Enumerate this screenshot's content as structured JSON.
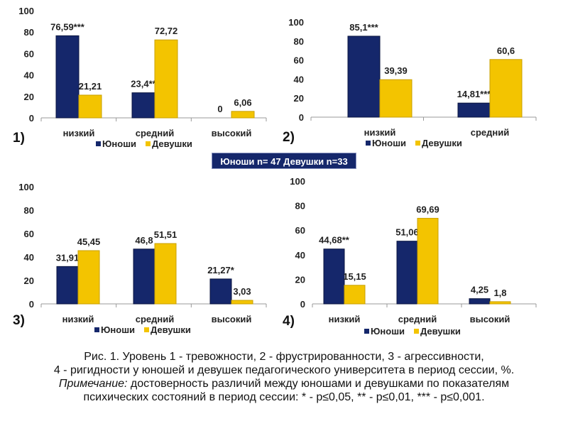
{
  "colors": {
    "Юноши": "#15276b",
    "Девушки": "#f3c400"
  },
  "sample_box": "Юноши n= 47 Девушки n=33",
  "caption": {
    "line1": "Рис. 1. Уровень 1 - тревожности, 2 -  фрустрированности, 3 - агрессивности,",
    "line2": "4 - ригидности у юношей и девушек педагогического университета в период сессии, %.",
    "note_label": "Примечание:",
    "line3": "  достоверность различий между юношами и девушками по показателям",
    "line4": "психических состояний в период сессии: * - p≤0,05, ** - p≤0,01, *** - p≤0,001."
  },
  "chart_data": [
    {
      "type": "bar",
      "number": "1)",
      "categories": [
        "низкий",
        "средний",
        "высокий"
      ],
      "ylim": [
        0,
        100
      ],
      "yticks": [
        0,
        20,
        40,
        60,
        80,
        100
      ],
      "legend": "bottom",
      "series": [
        {
          "name": "Юноши",
          "values": [
            76.59,
            23.4,
            0
          ],
          "labels": [
            "76,59***",
            "23,4**",
            "0"
          ]
        },
        {
          "name": "Девушки",
          "values": [
            21.21,
            72.72,
            6.06
          ],
          "labels": [
            "21,21",
            "72,72",
            "6,06"
          ]
        }
      ]
    },
    {
      "type": "bar",
      "number": "2)",
      "categories": [
        "низкий",
        "средний"
      ],
      "ylim": [
        0,
        100
      ],
      "yticks": [
        0,
        20,
        40,
        60,
        80,
        100
      ],
      "legend": "bottom",
      "series": [
        {
          "name": "Юноши",
          "values": [
            85.1,
            14.81
          ],
          "labels": [
            "85,1***",
            "14,81***"
          ]
        },
        {
          "name": "Девушки",
          "values": [
            39.39,
            60.6
          ],
          "labels": [
            "39,39",
            "60,6"
          ]
        }
      ]
    },
    {
      "type": "bar",
      "number": "3)",
      "categories": [
        "низкий",
        "средний",
        "высокий"
      ],
      "ylim": [
        0,
        100
      ],
      "yticks": [
        0,
        20,
        40,
        60,
        80,
        100
      ],
      "legend": "bottom",
      "series": [
        {
          "name": "Юноши",
          "values": [
            31.91,
            46.8,
            21.27
          ],
          "labels": [
            "31,91",
            "46,8",
            "21,27*"
          ]
        },
        {
          "name": "Девушки",
          "values": [
            45.45,
            51.51,
            3.03
          ],
          "labels": [
            "45,45",
            "51,51",
            "3,03"
          ]
        }
      ]
    },
    {
      "type": "bar",
      "number": "4)",
      "categories": [
        "низкий",
        "средний",
        "высокий"
      ],
      "ylim": [
        0,
        100
      ],
      "yticks": [
        0,
        20,
        40,
        60,
        80,
        100
      ],
      "legend": "bottom",
      "series": [
        {
          "name": "Юноши",
          "values": [
            44.68,
            51.06,
            4.25
          ],
          "labels": [
            "44,68**",
            "51,06",
            "4,25"
          ]
        },
        {
          "name": "Девушки",
          "values": [
            15.15,
            69.69,
            1.8
          ],
          "labels": [
            "15,15",
            "69,69",
            "1,8"
          ]
        }
      ]
    }
  ]
}
